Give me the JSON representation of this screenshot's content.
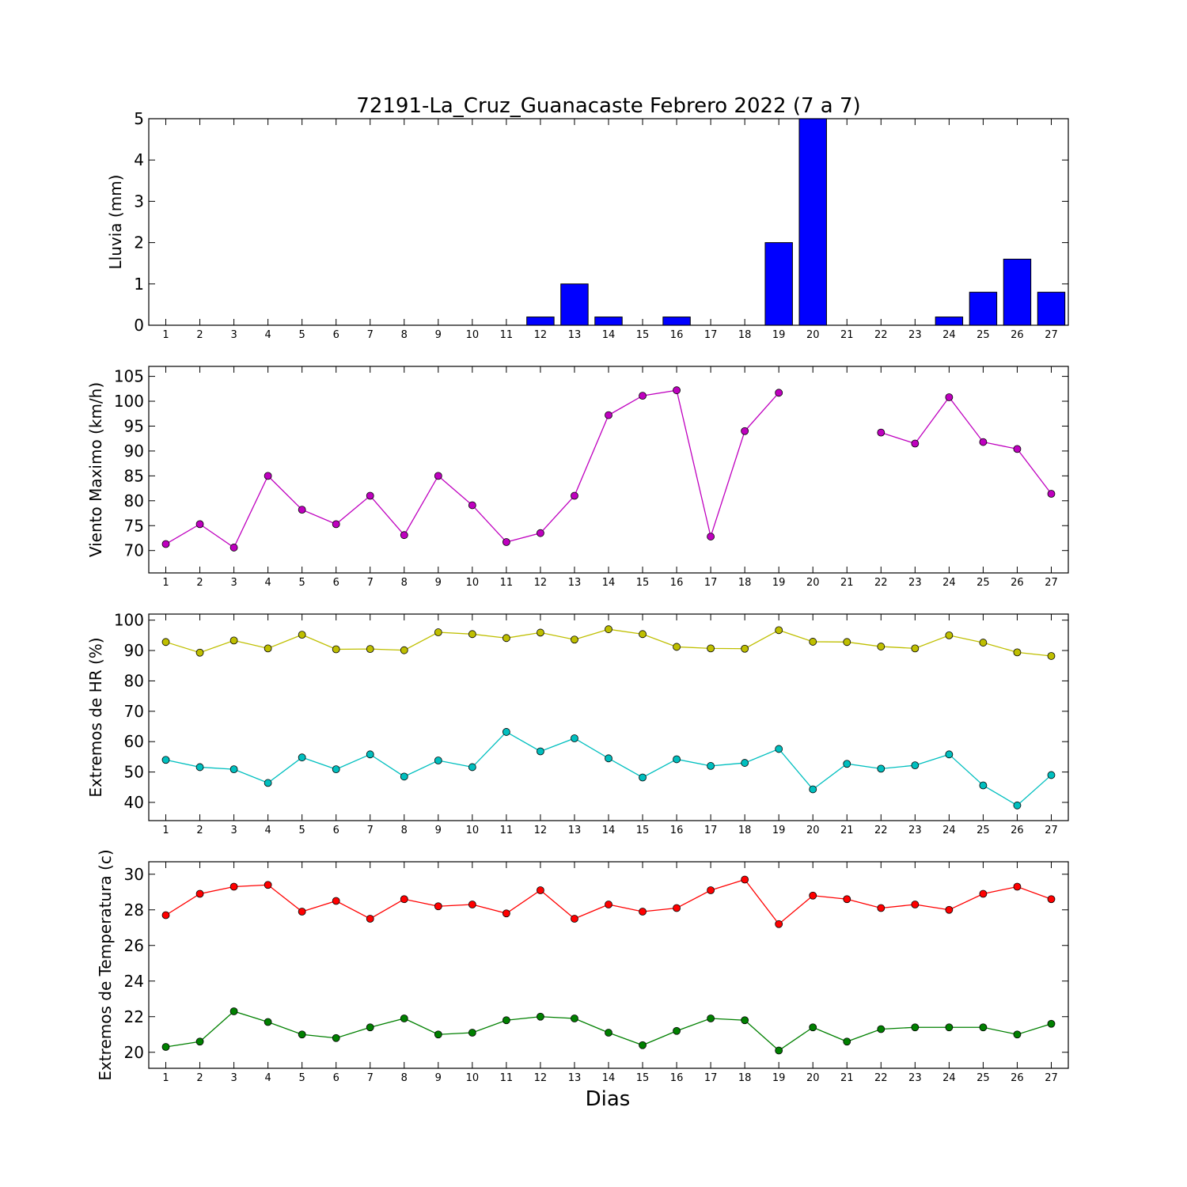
{
  "title": "72191-La_Cruz_Guanacaste Febrero 2022  (7 a 7)",
  "xlabel": "Dias",
  "chart_data": [
    {
      "type": "bar",
      "ylabel": "Lluvia (mm)",
      "x": [
        1,
        2,
        3,
        4,
        5,
        6,
        7,
        8,
        9,
        10,
        11,
        12,
        13,
        14,
        15,
        16,
        17,
        18,
        19,
        20,
        21,
        22,
        23,
        24,
        25,
        26,
        27
      ],
      "xlim": [
        0.5,
        27.5
      ],
      "ylim": [
        0,
        5
      ],
      "yticks": [
        0,
        1,
        2,
        3,
        4,
        5
      ],
      "series": [
        {
          "color": "#0000ff",
          "values": [
            0,
            0,
            0,
            0,
            0,
            0,
            0,
            0,
            0,
            0,
            0,
            0.2,
            1.0,
            0.2,
            0,
            0.2,
            0,
            0,
            2.0,
            5.0,
            0,
            0,
            0,
            0.2,
            0.8,
            1.6,
            0.8
          ]
        }
      ]
    },
    {
      "type": "line",
      "ylabel": "Viento Maximo (km/h)",
      "x": [
        1,
        2,
        3,
        4,
        5,
        6,
        7,
        8,
        9,
        10,
        11,
        12,
        13,
        14,
        15,
        16,
        17,
        18,
        19,
        20,
        21,
        22,
        23,
        24,
        25,
        26,
        27
      ],
      "xlim": [
        0.5,
        27.5
      ],
      "ylim": [
        65.5,
        107
      ],
      "yticks": [
        70,
        75,
        80,
        85,
        90,
        95,
        100,
        105
      ],
      "series": [
        {
          "color": "#bf00bf",
          "values": [
            71.3,
            75.3,
            70.6,
            85.0,
            78.2,
            75.3,
            81.0,
            73.1,
            85.0,
            79.1,
            71.7,
            73.5,
            81.0,
            97.2,
            101.1,
            102.2,
            72.8,
            94.0,
            101.7,
            null,
            null,
            93.7,
            91.5,
            100.8,
            91.8,
            90.4,
            81.4
          ]
        }
      ]
    },
    {
      "type": "line",
      "ylabel": "Extremos de HR (%)",
      "x": [
        1,
        2,
        3,
        4,
        5,
        6,
        7,
        8,
        9,
        10,
        11,
        12,
        13,
        14,
        15,
        16,
        17,
        18,
        19,
        20,
        21,
        22,
        23,
        24,
        25,
        26,
        27
      ],
      "xlim": [
        0.5,
        27.5
      ],
      "ylim": [
        34,
        102
      ],
      "yticks": [
        40,
        50,
        60,
        70,
        80,
        90,
        100
      ],
      "series": [
        {
          "color": "#bfbf00",
          "values": [
            92.8,
            89.3,
            93.3,
            90.7,
            95.2,
            90.4,
            90.5,
            90.1,
            96.0,
            95.4,
            94.1,
            95.9,
            93.6,
            97.0,
            95.4,
            91.2,
            90.7,
            90.6,
            96.7,
            92.9,
            92.8,
            91.3,
            90.7,
            95.0,
            92.6,
            89.4,
            88.2
          ]
        },
        {
          "color": "#00bfbf",
          "values": [
            54.0,
            51.6,
            50.9,
            46.4,
            54.8,
            50.9,
            55.8,
            48.5,
            53.8,
            51.6,
            63.2,
            56.8,
            61.1,
            54.5,
            48.2,
            54.2,
            52.0,
            53.0,
            57.6,
            44.3,
            52.7,
            51.1,
            52.2,
            55.8,
            45.6,
            39.0,
            49.0
          ]
        }
      ]
    },
    {
      "type": "line",
      "ylabel": "Extremos de Temperatura (c)",
      "x": [
        1,
        2,
        3,
        4,
        5,
        6,
        7,
        8,
        9,
        10,
        11,
        12,
        13,
        14,
        15,
        16,
        17,
        18,
        19,
        20,
        21,
        22,
        23,
        24,
        25,
        26,
        27
      ],
      "xlim": [
        0.5,
        27.5
      ],
      "ylim": [
        19.1,
        30.7
      ],
      "yticks": [
        20,
        22,
        24,
        26,
        28,
        30
      ],
      "series": [
        {
          "color": "#ff0000",
          "values": [
            27.7,
            28.9,
            29.3,
            29.4,
            27.9,
            28.5,
            27.5,
            28.6,
            28.2,
            28.3,
            27.8,
            29.1,
            27.5,
            28.3,
            27.9,
            28.1,
            29.1,
            29.7,
            27.2,
            28.8,
            28.6,
            28.1,
            28.3,
            28.0,
            28.9,
            29.3,
            28.6
          ]
        },
        {
          "color": "#008000",
          "values": [
            20.3,
            20.6,
            22.3,
            21.7,
            21.0,
            20.8,
            21.4,
            21.9,
            21.0,
            21.1,
            21.8,
            22.0,
            21.9,
            21.1,
            20.4,
            21.2,
            21.9,
            21.8,
            20.1,
            21.4,
            20.6,
            21.3,
            21.4,
            21.4,
            21.4,
            21.0,
            21.6
          ]
        }
      ]
    }
  ]
}
